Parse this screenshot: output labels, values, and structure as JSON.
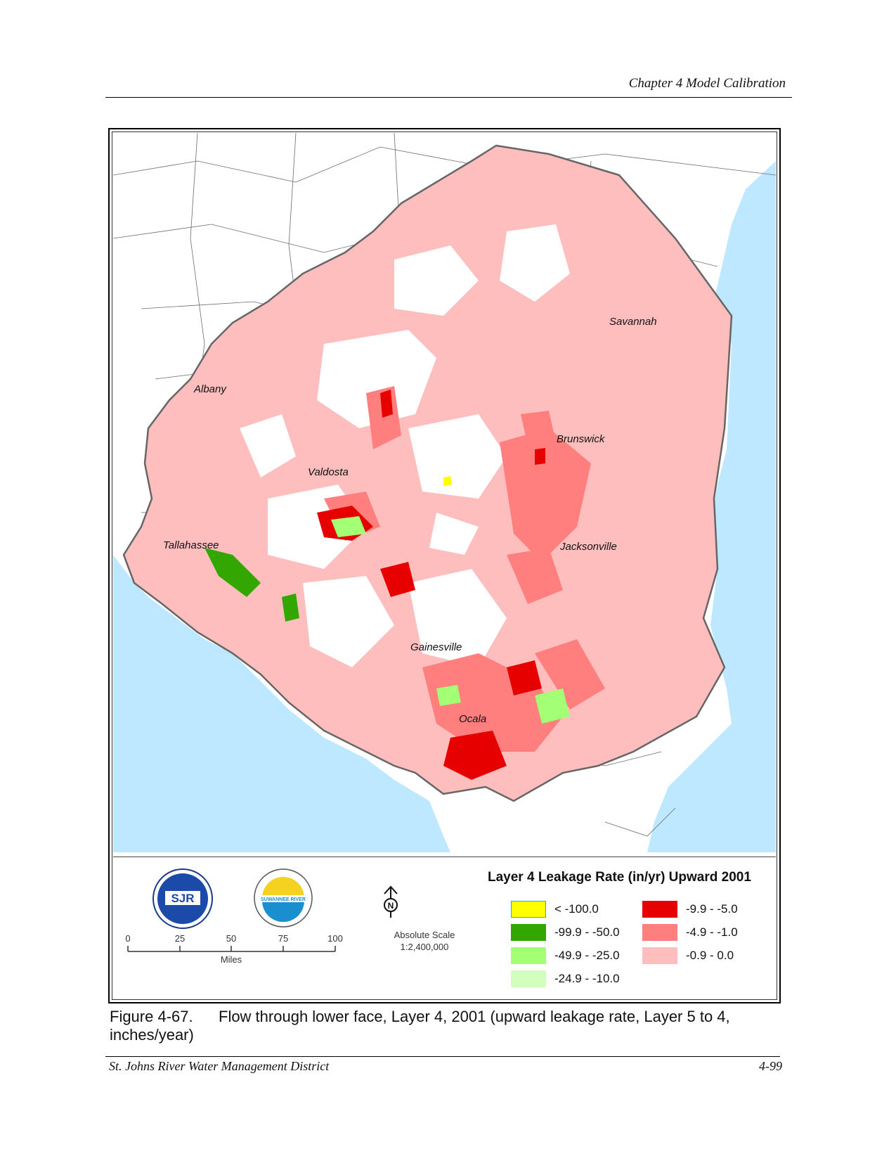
{
  "header": {
    "chapter_title": "Chapter 4 Model Calibration"
  },
  "map": {
    "cities": [
      {
        "name": "Savannah"
      },
      {
        "name": "Albany"
      },
      {
        "name": "Brunswick"
      },
      {
        "name": "Valdosta"
      },
      {
        "name": "Tallahassee"
      },
      {
        "name": "Jacksonville"
      },
      {
        "name": "Gainesville"
      },
      {
        "name": "Ocala"
      }
    ]
  },
  "legend": {
    "title": "Layer 4 Leakage Rate (in/yr) Upward 2001",
    "items": [
      {
        "label": "< -100.0",
        "color": "#ffff00"
      },
      {
        "label": "-99.9 - -50.0",
        "color": "#33a602"
      },
      {
        "label": "-49.9 - -25.0",
        "color": "#a3ff73"
      },
      {
        "label": "-24.9 - -10.0",
        "color": "#d3ffbe"
      },
      {
        "label": "-9.9 - -5.0",
        "color": "#e60000"
      },
      {
        "label": "-4.9 - -1.0",
        "color": "#ff7f7f"
      },
      {
        "label": "-0.9 - 0.0",
        "color": "#ffbebe"
      }
    ],
    "scale_bar": {
      "ticks": [
        "0",
        "25",
        "50",
        "75",
        "100"
      ],
      "unit": "Miles"
    },
    "absolute_scale": {
      "label": "Absolute Scale",
      "ratio": "1:2,400,000"
    },
    "north_arrow_letter": "N",
    "logos": [
      {
        "name": "sjr-logo",
        "text": "SJR"
      },
      {
        "name": "suwannee-river-logo",
        "text": "SUWANNEE RIVER"
      }
    ]
  },
  "caption": {
    "number": "Figure 4-67.",
    "text": "Flow through lower face, Layer 4, 2001 (upward leakage rate, Layer 5 to 4, inches/year)"
  },
  "footer": {
    "left": "St. Johns River Water Management District",
    "right": "4-99"
  }
}
